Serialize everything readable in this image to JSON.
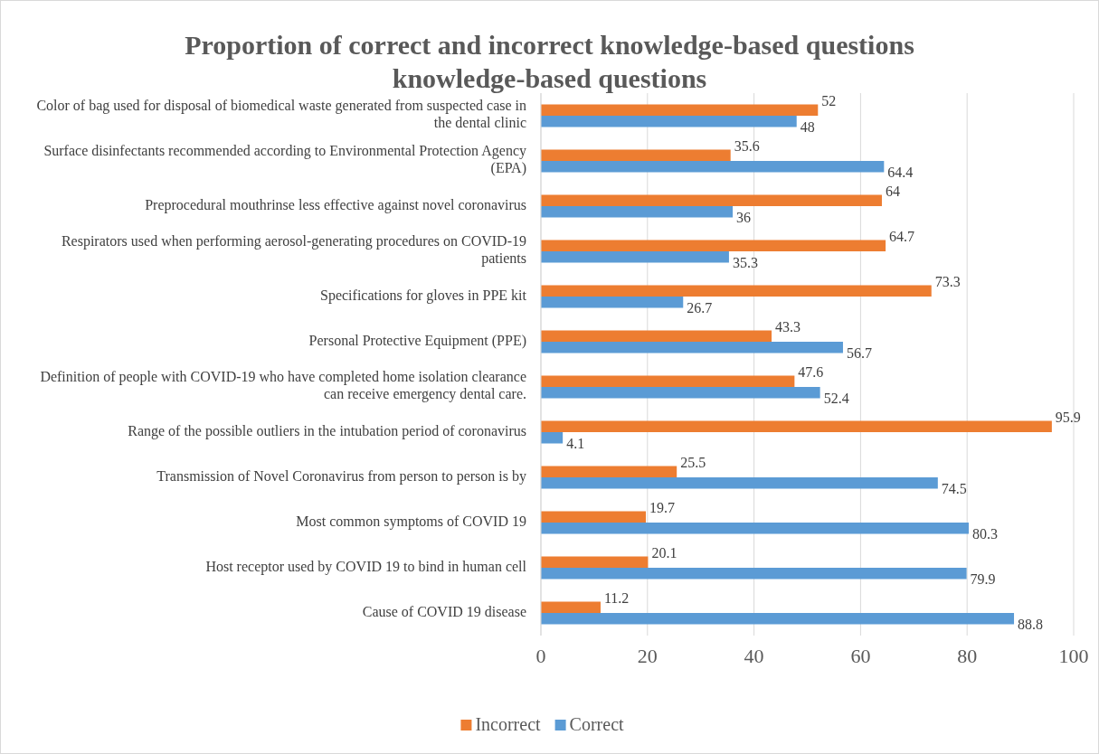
{
  "chart_data": {
    "type": "bar",
    "orientation": "horizontal",
    "title": "Proportion of correct and incorrect knowledge-based questions knowledge-based questions",
    "categories": [
      "Color of bag used for disposal of biomedical waste generated from suspected case in the dental clinic",
      "Surface disinfectants recommended according to Environmental Protection Agency (EPA)",
      "Preprocedural mouthrinse less effective against novel coronavirus",
      "Respirators used when performing aerosol-generating procedures on COVID-19 patients",
      "Specifications for gloves in PPE kit",
      "Personal Protective Equipment (PPE)",
      "Definition of people with COVID-19 who have completed home isolation clearance can receive emergency dental care.",
      "Range of the possible outliers in the intubation period of coronavirus",
      "Transmission of Novel Coronavirus from person to person is by",
      "Most common symptoms of COVID 19",
      "Host receptor used by COVID 19 to bind in human cell",
      "Cause of COVID 19 disease"
    ],
    "series": [
      {
        "name": "Incorrect",
        "color": "#ed7d31",
        "values": [
          52,
          35.6,
          64,
          64.7,
          73.3,
          43.3,
          47.6,
          95.9,
          25.5,
          19.7,
          20.1,
          11.2
        ]
      },
      {
        "name": "Correct",
        "color": "#5b9bd5",
        "values": [
          48,
          64.4,
          36,
          35.3,
          26.7,
          56.7,
          52.4,
          4.1,
          74.5,
          80.3,
          79.9,
          88.8
        ]
      }
    ],
    "xlim": [
      0,
      100
    ],
    "xticks": [
      0,
      20,
      40,
      60,
      80,
      100
    ],
    "grid": "x",
    "legend": "bottom",
    "data_labels": true
  }
}
